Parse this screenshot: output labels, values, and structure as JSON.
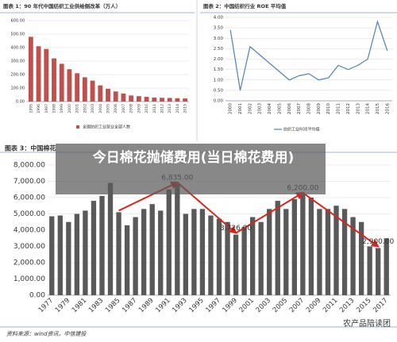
{
  "chart_data": [
    {
      "type": "bar",
      "title": "图表 1：90 年代中国纺织工业供给侧改革（万人）",
      "categories": [
        "1995",
        "1996",
        "1997",
        "1998",
        "1999",
        "2000",
        "2001",
        "2002",
        "2003",
        "2004",
        "2005",
        "2006",
        "2007",
        "2008",
        "2009",
        "2010",
        "2011",
        "2012",
        "2013",
        "2014",
        "2015"
      ],
      "series": [
        {
          "name": "全国纺织工业就业全部人数",
          "color": "#c0504d",
          "values": [
            480,
            410,
            390,
            320,
            280,
            240,
            210,
            180,
            155,
            120,
            95,
            75,
            60,
            45,
            40,
            35,
            30,
            28,
            27,
            25,
            23
          ]
        }
      ],
      "ylim": [
        0,
        600
      ],
      "yticks": [
        {
          "value": 0,
          "label": "0.00"
        },
        {
          "value": 100,
          "label": "100.00"
        },
        {
          "value": 200,
          "label": "200.00"
        },
        {
          "value": 300,
          "label": "300.00"
        },
        {
          "value": 400,
          "label": "400.00"
        },
        {
          "value": 500,
          "label": "500.00"
        },
        {
          "value": 600,
          "label": "600.00"
        }
      ],
      "grid": true,
      "legend": "bottom"
    },
    {
      "type": "line",
      "title": "图表 2：中国纺织行业 ROE 平均值",
      "categories": [
        "2000",
        "2001",
        "2002",
        "2003",
        "2004",
        "2005",
        "2006",
        "2007",
        "2008",
        "2009",
        "2010",
        "2011",
        "2012",
        "2013",
        "2014",
        "2015",
        "2016"
      ],
      "series": [
        {
          "name": "纺织工业ROE平均值",
          "color": "#4f81bd",
          "values": [
            3.4,
            0.5,
            2.6,
            2.2,
            1.8,
            1.4,
            1.0,
            1.2,
            1.3,
            1.0,
            1.1,
            1.7,
            1.5,
            1.7,
            2.0,
            3.8,
            2.4
          ]
        }
      ],
      "ylim": [
        0,
        4
      ],
      "yticks": [
        {
          "value": 0,
          "label": "0.00"
        },
        {
          "value": 0.5,
          "label": "0.50"
        },
        {
          "value": 1,
          "label": "1.00"
        },
        {
          "value": 1.5,
          "label": "1.50"
        },
        {
          "value": 2,
          "label": "2.00"
        },
        {
          "value": 2.5,
          "label": "2.50"
        },
        {
          "value": 3,
          "label": "3.00"
        },
        {
          "value": 3.5,
          "label": "3.50"
        },
        {
          "value": 4,
          "label": "4.00"
        }
      ],
      "grid": true,
      "legend": "bottom"
    },
    {
      "type": "bar",
      "title": "图表 3：中国棉花",
      "overlay_title": "今日棉花抛储费用(当日棉花费用)",
      "source": "资料来源：wind资讯，中信建投",
      "watermark": "农产品陪读团",
      "categories": [
        "1977",
        null,
        "1979",
        null,
        "1981",
        null,
        "1983",
        null,
        "1985",
        null,
        "1987",
        null,
        "1989",
        null,
        "1991",
        null,
        "1993",
        null,
        "1995",
        null,
        "1997",
        null,
        "1999",
        null,
        "2001",
        null,
        "2003",
        null,
        "2005",
        null,
        "2007",
        null,
        "2009",
        null,
        "2011",
        null,
        "2013",
        null,
        "2015",
        null,
        "2017"
      ],
      "series": [
        {
          "color": "#595959",
          "values": [
            4850,
            4900,
            4500,
            5000,
            5200,
            5800,
            6100,
            6900,
            5100,
            4300,
            4800,
            5300,
            5600,
            5200,
            6500,
            6835,
            5000,
            5300,
            5300,
            4900,
            4700,
            4500,
            3726,
            4200,
            4800,
            4500,
            5300,
            5800,
            5300,
            5900,
            6200,
            6000,
            5300,
            5300,
            5500,
            5300,
            4800,
            4500,
            3000,
            2900,
            3500
          ],
          "value_labels": [
            null,
            null,
            null,
            null,
            null,
            null,
            null,
            null,
            null,
            null,
            null,
            null,
            null,
            null,
            null,
            "6,835.00",
            null,
            null,
            null,
            null,
            null,
            null,
            "3,726.00",
            null,
            null,
            null,
            null,
            null,
            null,
            null,
            "6,200.00",
            null,
            null,
            null,
            null,
            null,
            null,
            null,
            null,
            "2,900.00",
            null
          ]
        }
      ],
      "ylim": [
        0,
        8000
      ],
      "yticks": [
        {
          "value": 0,
          "label": "0.00"
        },
        {
          "value": 1000,
          "label": "1,000.00"
        },
        {
          "value": 2000,
          "label": "2,000.00"
        },
        {
          "value": 3000,
          "label": "3,000.00"
        },
        {
          "value": 4000,
          "label": "4,000.00"
        },
        {
          "value": 5000,
          "label": "5,000.00"
        },
        {
          "value": 6000,
          "label": "6,000.00"
        },
        {
          "value": 7000,
          "label": "7,000.00"
        },
        {
          "value": 8000,
          "label": "8,000.00"
        }
      ],
      "grid": true
    }
  ]
}
